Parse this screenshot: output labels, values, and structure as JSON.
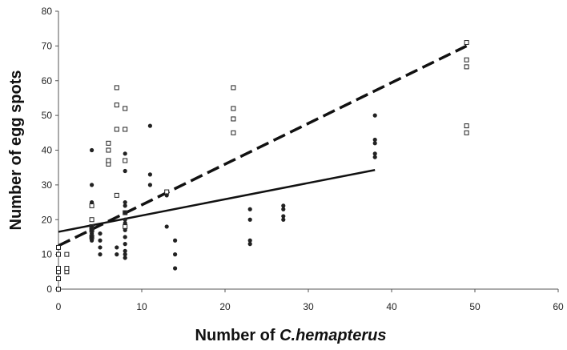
{
  "chart_data": {
    "type": "scatter",
    "title": "",
    "xlabel_parts": {
      "plain": "Number of ",
      "italic": "C.hemapterus"
    },
    "ylabel": "Number of egg spots",
    "xlim": [
      0,
      60
    ],
    "ylim": [
      0,
      80
    ],
    "xticks": [
      "0",
      "10",
      "20",
      "30",
      "40",
      "50",
      "60"
    ],
    "yticks": [
      "0",
      "10",
      "20",
      "30",
      "40",
      "50",
      "60",
      "70",
      "80"
    ],
    "grid": false,
    "legend": "none",
    "series": [
      {
        "marker": "open-square",
        "color": "#222222",
        "points": [
          [
            0,
            0
          ],
          [
            0,
            3
          ],
          [
            0,
            5
          ],
          [
            0,
            6
          ],
          [
            0,
            10
          ],
          [
            0,
            12
          ],
          [
            1,
            5
          ],
          [
            1,
            6
          ],
          [
            1,
            10
          ],
          [
            4,
            15
          ],
          [
            4,
            17
          ],
          [
            4,
            18
          ],
          [
            4,
            20
          ],
          [
            4,
            24
          ],
          [
            6,
            36
          ],
          [
            6,
            37
          ],
          [
            6,
            40
          ],
          [
            6,
            42
          ],
          [
            7,
            27
          ],
          [
            7,
            46
          ],
          [
            7,
            53
          ],
          [
            7,
            58
          ],
          [
            8,
            18
          ],
          [
            8,
            22
          ],
          [
            8,
            37
          ],
          [
            8,
            46
          ],
          [
            8,
            52
          ],
          [
            13,
            28
          ],
          [
            21,
            45
          ],
          [
            21,
            49
          ],
          [
            21,
            52
          ],
          [
            21,
            58
          ],
          [
            49,
            45
          ],
          [
            49,
            47
          ],
          [
            49,
            64
          ],
          [
            49,
            66
          ],
          [
            49,
            71
          ]
        ]
      },
      {
        "marker": "filled-circle",
        "color": "#222222",
        "points": [
          [
            4,
            14
          ],
          [
            4,
            15
          ],
          [
            4,
            16
          ],
          [
            4,
            17
          ],
          [
            4,
            18
          ],
          [
            4,
            25
          ],
          [
            4,
            30
          ],
          [
            4,
            40
          ],
          [
            5,
            10
          ],
          [
            5,
            12
          ],
          [
            5,
            14
          ],
          [
            5,
            16
          ],
          [
            7,
            10
          ],
          [
            7,
            12
          ],
          [
            8,
            9
          ],
          [
            8,
            10
          ],
          [
            8,
            11
          ],
          [
            8,
            13
          ],
          [
            8,
            15
          ],
          [
            8,
            17
          ],
          [
            8,
            19
          ],
          [
            8,
            20
          ],
          [
            8,
            22
          ],
          [
            8,
            24
          ],
          [
            8,
            25
          ],
          [
            8,
            34
          ],
          [
            8,
            39
          ],
          [
            11,
            30
          ],
          [
            11,
            33
          ],
          [
            11,
            47
          ],
          [
            13,
            18
          ],
          [
            13,
            27
          ],
          [
            14,
            6
          ],
          [
            14,
            10
          ],
          [
            14,
            14
          ],
          [
            23,
            13
          ],
          [
            23,
            14
          ],
          [
            23,
            20
          ],
          [
            23,
            23
          ],
          [
            27,
            20
          ],
          [
            27,
            21
          ],
          [
            27,
            23
          ],
          [
            27,
            24
          ],
          [
            38,
            38
          ],
          [
            38,
            39
          ],
          [
            38,
            42
          ],
          [
            38,
            43
          ],
          [
            38,
            50
          ]
        ]
      }
    ],
    "trendlines": [
      {
        "style": "dashed",
        "x": [
          0,
          49
        ],
        "y": [
          12.5,
          70
        ],
        "color": "#111111"
      },
      {
        "style": "solid",
        "x": [
          0,
          38
        ],
        "y": [
          16.5,
          34.3
        ],
        "color": "#111111"
      }
    ]
  }
}
